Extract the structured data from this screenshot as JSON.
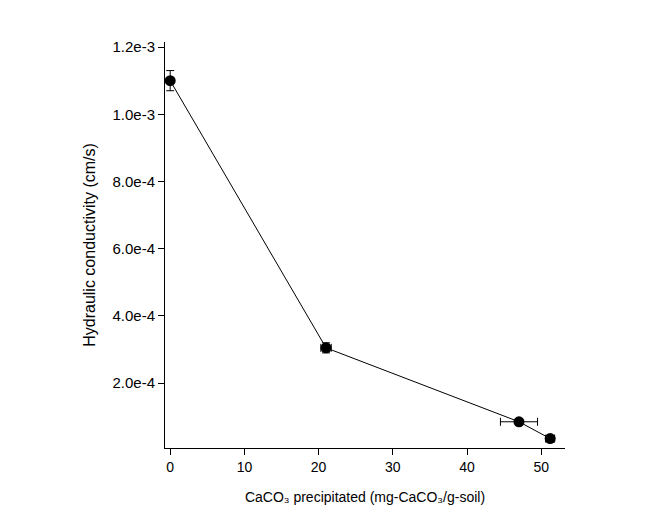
{
  "chart_data": {
    "type": "line",
    "x_label": "CaCO₃ precipitated (mg-CaCO₃/g-soil)",
    "y_label": "Hydraulic conductivity (cm/s)",
    "x": [
      0,
      21,
      47,
      51.2
    ],
    "values": [
      0.0011,
      0.000305,
      8.5e-05,
      3.5e-05
    ],
    "x_error": [
      0,
      0.7,
      2.5,
      0.6
    ],
    "y_error": [
      3e-05,
      1.5e-05,
      8e-06,
      8e-06
    ],
    "color": "#000000",
    "marker": "circle",
    "line_style": "solid",
    "xlim": [
      -0.7,
      53.2
    ],
    "ylim": [
      7e-06,
      0.001215
    ],
    "xticks": [
      0,
      10,
      20,
      30,
      40,
      50
    ],
    "yticks": [
      {
        "value": 0.0002,
        "label": "2.0e-4"
      },
      {
        "value": 0.0004,
        "label": "4.0e-4"
      },
      {
        "value": 0.0006,
        "label": "6.0e-4"
      },
      {
        "value": 0.0008,
        "label": "8.0e-4"
      },
      {
        "value": 0.001,
        "label": "1.0e-3"
      },
      {
        "value": 0.0012,
        "label": "1.2e-3"
      }
    ],
    "grid": false
  }
}
